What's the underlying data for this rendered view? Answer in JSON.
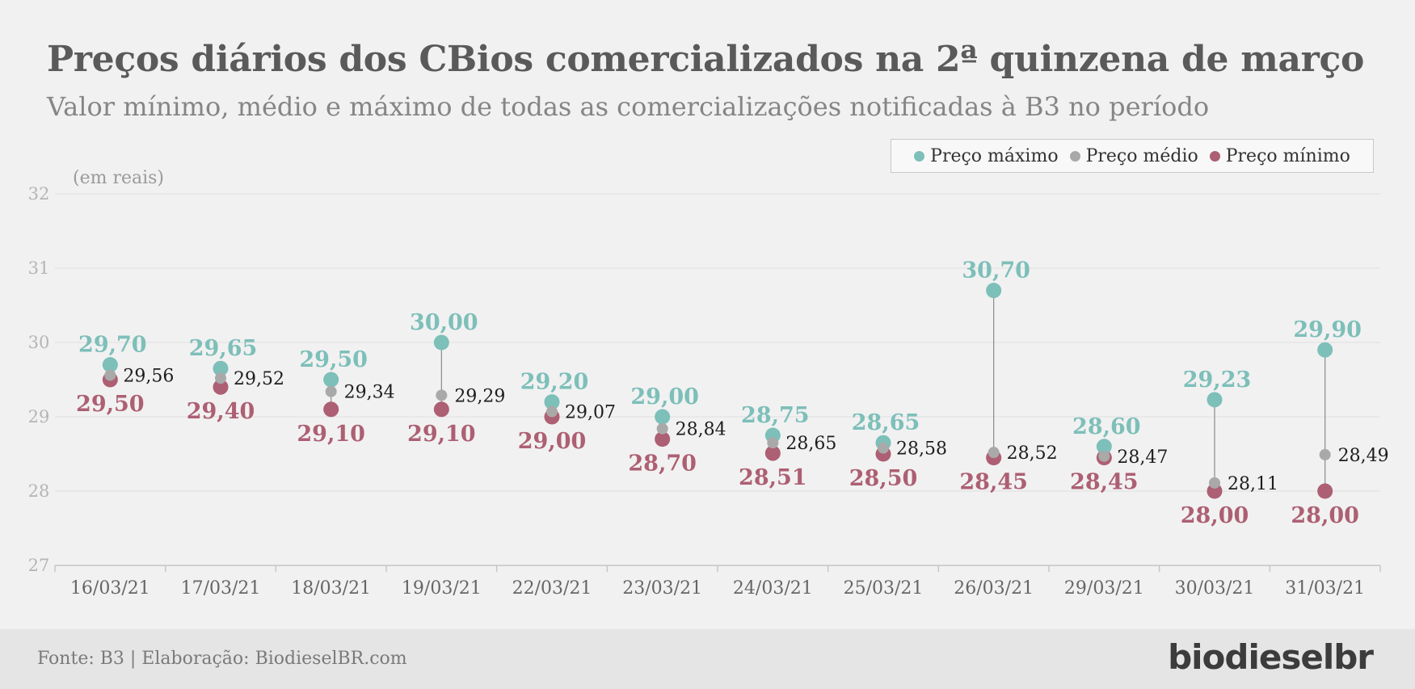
{
  "title": "Preços diários dos CBios comercializados na 2ª quinzena de março",
  "subtitle": "Valor mínimo, médio e máximo de todas as comercializações notificadas à B3 no período",
  "footer": {
    "source": "Fonte: B3 | Elaboração: BiodieselBR.com",
    "logo": "biodieselbr"
  },
  "colors": {
    "max": "#7dbfb9",
    "mean": "#a9a9a9",
    "min": "#ad5f73",
    "axis": "#c6c6c6",
    "grid": "#e0e0e0"
  },
  "chart_data": {
    "type": "scatter",
    "unit_label": "(em reais)",
    "categories": [
      "16/03/21",
      "17/03/21",
      "18/03/21",
      "19/03/21",
      "22/03/21",
      "23/03/21",
      "24/03/21",
      "25/03/21",
      "26/03/21",
      "29/03/21",
      "30/03/21",
      "31/03/21"
    ],
    "ylim": [
      27,
      32
    ],
    "yticks": [
      "27",
      "28",
      "29",
      "30",
      "31",
      "32"
    ],
    "grid": true,
    "legend_position": "top-right",
    "series": [
      {
        "name": "Preço máximo",
        "key": "max",
        "values": [
          29.7,
          29.65,
          29.5,
          30.0,
          29.2,
          29.0,
          28.75,
          28.65,
          30.7,
          28.6,
          29.23,
          29.9
        ],
        "labels": [
          "29,70",
          "29,65",
          "29,50",
          "30,00",
          "29,20",
          "29,00",
          "28,75",
          "28,65",
          "30,70",
          "28,60",
          "29,23",
          "29,90"
        ]
      },
      {
        "name": "Preço médio",
        "key": "mean",
        "values": [
          29.56,
          29.52,
          29.34,
          29.29,
          29.07,
          28.84,
          28.65,
          28.58,
          28.52,
          28.47,
          28.11,
          28.49
        ],
        "labels": [
          "29,56",
          "29,52",
          "29,34",
          "29,29",
          "29,07",
          "28,84",
          "28,65",
          "28,58",
          "28,52",
          "28,47",
          "28,11",
          "28,49"
        ]
      },
      {
        "name": "Preço mínimo",
        "key": "min",
        "values": [
          29.5,
          29.4,
          29.1,
          29.1,
          29.0,
          28.7,
          28.51,
          28.5,
          28.45,
          28.45,
          28.0,
          28.0
        ],
        "labels": [
          "29,50",
          "29,40",
          "29,10",
          "29,10",
          "29,00",
          "28,70",
          "28,51",
          "28,50",
          "28,45",
          "28,45",
          "28,00",
          "28,00"
        ]
      }
    ]
  }
}
